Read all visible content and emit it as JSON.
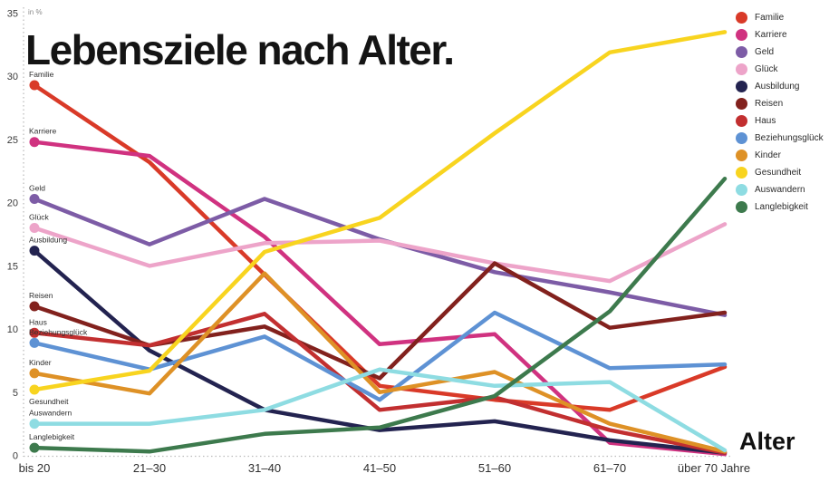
{
  "title": "Lebensziele nach Alter.",
  "unit_label": "in %",
  "x_axis_label": "Alter",
  "chart_data": {
    "type": "line",
    "categories": [
      "bis 20",
      "21–30",
      "31–40",
      "41–50",
      "51–60",
      "61–70",
      "über 70 Jahre"
    ],
    "ylabel": "in %",
    "xlabel": "Alter",
    "ylim": [
      0,
      35
    ],
    "y_ticks": [
      0,
      5,
      10,
      15,
      20,
      25,
      30,
      35
    ],
    "grid": "dotted-axes-only",
    "legend_position": "top-right",
    "series": [
      {
        "name": "Familie",
        "color": "#d93a28",
        "values": [
          29.3,
          23.2,
          14.3,
          5.5,
          4.4,
          3.6,
          7.0
        ]
      },
      {
        "name": "Karriere",
        "color": "#d03280",
        "values": [
          24.8,
          23.7,
          17.3,
          8.8,
          9.6,
          1.0,
          0.1
        ]
      },
      {
        "name": "Geld",
        "color": "#7d5ca6",
        "values": [
          20.3,
          16.7,
          20.3,
          17.1,
          14.5,
          12.9,
          11.1
        ]
      },
      {
        "name": "Glück",
        "color": "#eda4c9",
        "values": [
          18.0,
          15.0,
          16.8,
          17.0,
          15.2,
          13.8,
          18.3
        ]
      },
      {
        "name": "Ausbildung",
        "color": "#232350",
        "values": [
          16.2,
          8.3,
          3.6,
          2.0,
          2.7,
          1.2,
          0.2
        ]
      },
      {
        "name": "Reisen",
        "color": "#82211d",
        "values": [
          11.8,
          8.7,
          10.2,
          6.1,
          15.2,
          10.1,
          11.3
        ]
      },
      {
        "name": "Haus",
        "color": "#c22f30",
        "values": [
          9.7,
          8.7,
          11.2,
          3.6,
          4.6,
          2.0,
          0.2
        ]
      },
      {
        "name": "Beziehungsglück",
        "color": "#5e92d4",
        "values": [
          8.9,
          6.8,
          9.4,
          4.4,
          11.3,
          6.9,
          7.2
        ]
      },
      {
        "name": "Kinder",
        "color": "#de9126",
        "values": [
          6.5,
          4.9,
          14.4,
          5.0,
          6.6,
          2.5,
          0.3
        ]
      },
      {
        "name": "Gesundheit",
        "color": "#f8d41f",
        "values": [
          5.2,
          6.7,
          16.1,
          18.8,
          25.5,
          31.9,
          33.5
        ]
      },
      {
        "name": "Auswandern",
        "color": "#8edce2",
        "values": [
          2.5,
          2.5,
          3.6,
          6.8,
          5.5,
          5.8,
          0.4
        ]
      },
      {
        "name": "Langlebigkeit",
        "color": "#3d7a4d",
        "values": [
          0.6,
          0.3,
          1.7,
          2.2,
          4.7,
          11.4,
          21.9
        ]
      }
    ]
  }
}
